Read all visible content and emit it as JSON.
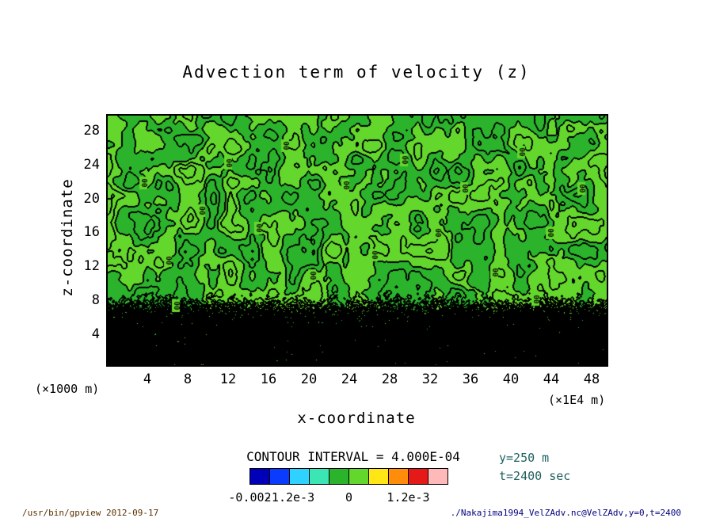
{
  "title": "Advection term of velocity (z)",
  "axes": {
    "x": {
      "label": "x-coordinate",
      "ticks": [
        "4",
        "8",
        "12",
        "16",
        "20",
        "24",
        "28",
        "32",
        "36",
        "40",
        "44",
        "48"
      ],
      "unit": "(×1E4 m)"
    },
    "y": {
      "label": "z-coordinate",
      "ticks": [
        "4",
        "8",
        "12",
        "16",
        "20",
        "24",
        "28"
      ],
      "unit": "(×1000 m)"
    }
  },
  "contour": {
    "interval_text": "CONTOUR INTERVAL = 4.000E-04",
    "line_label": "0"
  },
  "colorbar": {
    "colors": [
      "#0000b9",
      "#0a3cff",
      "#2fd2ff",
      "#3ce6b4",
      "#2cb32c",
      "#64d72d",
      "#ffe614",
      "#ff8c0a",
      "#e61919",
      "#ffb9b9"
    ],
    "tick_labels": [
      "-0.002",
      "-1.2e-3",
      "0",
      "1.2e-3"
    ],
    "tick_values": [
      -0.002,
      -0.0012,
      0,
      0.0012
    ]
  },
  "annotations": {
    "slice": "y=250 m",
    "time": "t=2400 sec"
  },
  "footer": {
    "command": "/usr/bin/gpview  2012-09-17",
    "source": "./Nakajima1994_VelZAdv.nc@VelZAdv,y=0,t=2400"
  },
  "field_colors": {
    "positive": "#64d72d",
    "negative": "#2cb32c",
    "contour": "#000000"
  },
  "chart_data": {
    "type": "heatmap",
    "subtype": "filled contour plot with contour lines",
    "title": "Advection term of velocity (z)",
    "xlabel": "x-coordinate",
    "ylabel": "z-coordinate",
    "x_ticks": [
      4,
      8,
      12,
      16,
      20,
      24,
      28,
      32,
      36,
      40,
      44,
      48
    ],
    "y_ticks": [
      4,
      8,
      12,
      16,
      20,
      24,
      28
    ],
    "x_unit_factor": "1E4 m",
    "y_unit_factor": "1000 m",
    "xlim": [
      0,
      49.4
    ],
    "ylim": [
      0,
      29.6
    ],
    "contour_interval": 0.0004,
    "levels": [
      -0.002,
      -0.0016,
      -0.0012,
      -0.0008,
      -0.0004,
      0,
      0.0004,
      0.0008,
      0.0012,
      0.0016,
      0.002
    ],
    "colorbar_range": [
      -0.002,
      0.002
    ],
    "colorbar_colors": [
      "#0000b9",
      "#0a3cff",
      "#2fd2ff",
      "#3ce6b4",
      "#2cb32c",
      "#64d72d",
      "#ffe614",
      "#ff8c0a",
      "#e61919",
      "#ffb9b9"
    ],
    "slice": {
      "y": "250 m",
      "t": "2400 sec"
    },
    "grid": false,
    "legend_position": "bottom colorbar",
    "field_summary": "Interior of the domain stays within ±4e-4 (light green = positive band 0..4e-4, darker green = negative band -4e-4..0) with black contour lines at multiples of 4e-4 and scattered rotated '0' contour labels; below z≈4 the field has high-amplitude small-scale fluctuations drawn as near-solid black speckle of dense contours."
  }
}
